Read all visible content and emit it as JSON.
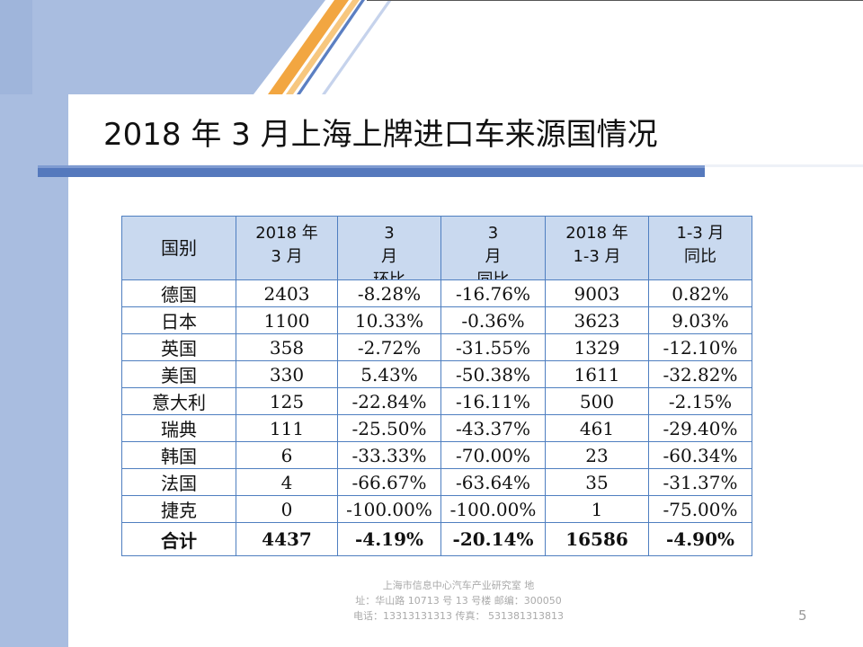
{
  "slide": {
    "title": "2018 年 3 月上海上牌进口车来源国情况",
    "page_number": "5",
    "colors": {
      "blue_band": "#a9bde0",
      "orange": "#f2a641",
      "header_fill": "#c9d9ef",
      "table_border": "#4f7fc0"
    }
  },
  "table": {
    "headers": [
      {
        "lines": [
          "国别"
        ]
      },
      {
        "lines": [
          "2018 年",
          "3 月"
        ]
      },
      {
        "lines": [
          "3",
          "月",
          "环比"
        ]
      },
      {
        "lines": [
          "3",
          "月",
          "同比"
        ]
      },
      {
        "lines": [
          "2018 年",
          "1-3 月"
        ]
      },
      {
        "lines": [
          "1-3 月",
          "同比"
        ]
      }
    ],
    "rows": [
      [
        "德国",
        "2403",
        "-8.28%",
        "-16.76%",
        "9003",
        "0.82%"
      ],
      [
        "日本",
        "1100",
        "10.33%",
        "-0.36%",
        "3623",
        "9.03%"
      ],
      [
        "英国",
        "358",
        "-2.72%",
        "-31.55%",
        "1329",
        "-12.10%"
      ],
      [
        "美国",
        "330",
        "5.43%",
        "-50.38%",
        "1611",
        "-32.82%"
      ],
      [
        "意大利",
        "125",
        "-22.84%",
        "-16.11%",
        "500",
        "-2.15%"
      ],
      [
        "瑞典",
        "111",
        "-25.50%",
        "-43.37%",
        "461",
        "-29.40%"
      ],
      [
        "韩国",
        "6",
        "-33.33%",
        "-70.00%",
        "23",
        "-60.34%"
      ],
      [
        "法国",
        "4",
        "-66.67%",
        "-63.64%",
        "35",
        "-31.37%"
      ],
      [
        "捷克",
        "0",
        "-100.00%",
        "-100.00%",
        "1",
        "-75.00%"
      ]
    ],
    "total": [
      "合计",
      "4437",
      "-4.19%",
      "-20.14%",
      "16586",
      "-4.90%"
    ]
  },
  "footer": {
    "line1": "上海市信息中心汽车产业研究室  地",
    "line2": "址：华山路 10713 号 13 号楼      邮编：300050",
    "line3": "电话：13313131313  传真： 531381313813"
  }
}
